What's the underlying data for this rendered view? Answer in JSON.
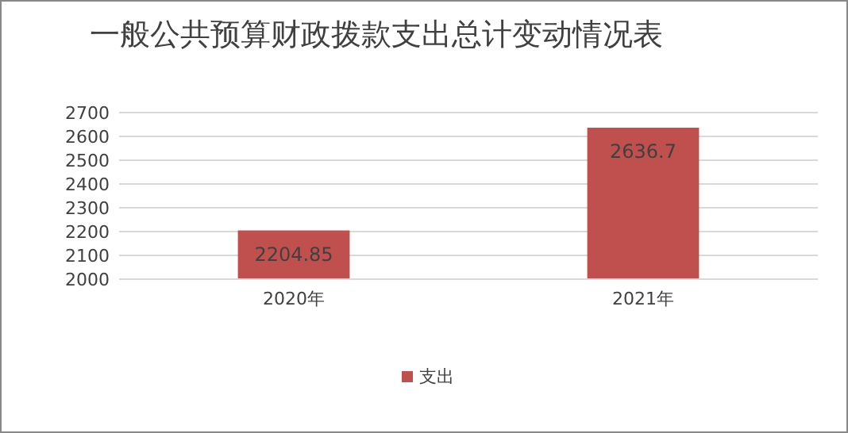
{
  "chart_data": {
    "type": "bar",
    "title": "一般公共预算财政拨款支出总计变动情况表",
    "categories": [
      "2020年",
      "2021年"
    ],
    "series": [
      {
        "name": "支出",
        "color": "#c0504d",
        "values": [
          2204.85,
          2636.7
        ]
      }
    ],
    "ylim": [
      2000,
      2700
    ],
    "yticks": [
      2000,
      2100,
      2200,
      2300,
      2400,
      2500,
      2600,
      2700
    ],
    "grid": "y",
    "legend": "bottom",
    "data_labels": true
  }
}
